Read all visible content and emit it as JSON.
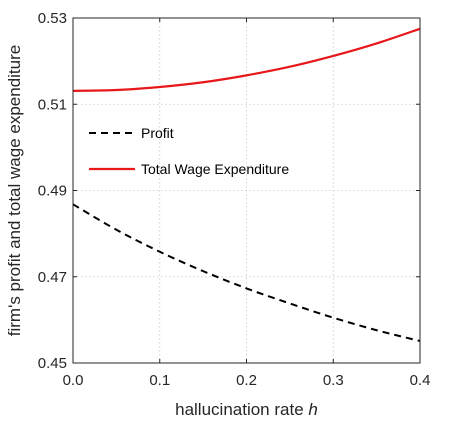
{
  "chart_data": {
    "type": "line",
    "xlabel": "hallucination rate",
    "xlabel_var": "h",
    "ylabel": "firm's profit and total wage expenditure",
    "xlim": [
      0,
      0.4
    ],
    "ylim": [
      0.45,
      0.53
    ],
    "xticks": [
      0,
      0.1,
      0.2,
      0.3,
      0.4
    ],
    "xtick_labels": [
      "0.0",
      "0.1",
      "0.2",
      "0.3",
      "0.4"
    ],
    "yticks": [
      0.45,
      0.47,
      0.49,
      0.51,
      0.53
    ],
    "ytick_labels": [
      "0.45",
      "0.47",
      "0.49",
      "0.51",
      "0.53"
    ],
    "grid": true,
    "legend_position": "upper-left",
    "series": [
      {
        "name": "Profit",
        "color": "#000000",
        "style": "dashed",
        "x": [
          0.0,
          0.05,
          0.1,
          0.15,
          0.2,
          0.25,
          0.3,
          0.35,
          0.4
        ],
        "y": [
          0.4868,
          0.4809,
          0.4758,
          0.4713,
          0.4673,
          0.4638,
          0.4605,
          0.4576,
          0.4551
        ]
      },
      {
        "name": "Total Wage Expenditure",
        "color": "#e8181a",
        "style": "solid",
        "x": [
          0.0,
          0.05,
          0.1,
          0.15,
          0.2,
          0.25,
          0.3,
          0.35,
          0.4
        ],
        "y": [
          0.5131,
          0.5133,
          0.514,
          0.5151,
          0.5167,
          0.5187,
          0.5212,
          0.5241,
          0.5275
        ]
      }
    ]
  }
}
